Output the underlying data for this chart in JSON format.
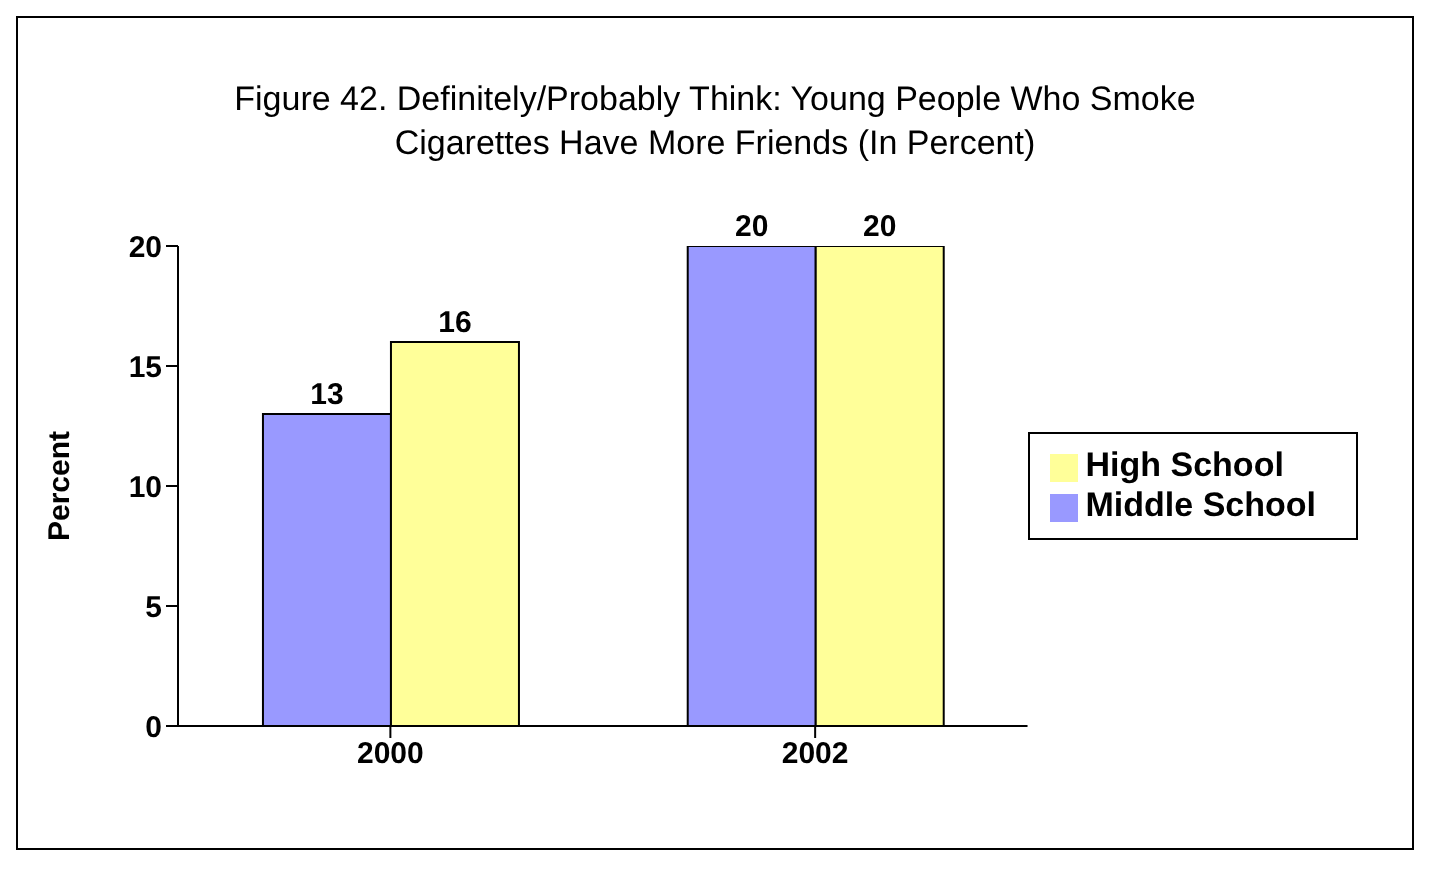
{
  "chart_data": {
    "type": "bar",
    "title": "Figure 42. Definitely/Probably Think: Young People Who Smoke Cigarettes Have More Friends (In Percent)",
    "ylabel": "Percent",
    "categories": [
      "2000",
      "2002"
    ],
    "series": [
      {
        "name": "Middle School",
        "color": "#9999ff",
        "values": [
          13,
          20
        ]
      },
      {
        "name": "High School",
        "color": "#ffff99",
        "values": [
          16,
          20
        ]
      }
    ],
    "ylim": [
      0,
      20
    ],
    "yticks": [
      0,
      5,
      10,
      15,
      20
    ],
    "grid": false,
    "legend": "right",
    "data_labels": true
  }
}
